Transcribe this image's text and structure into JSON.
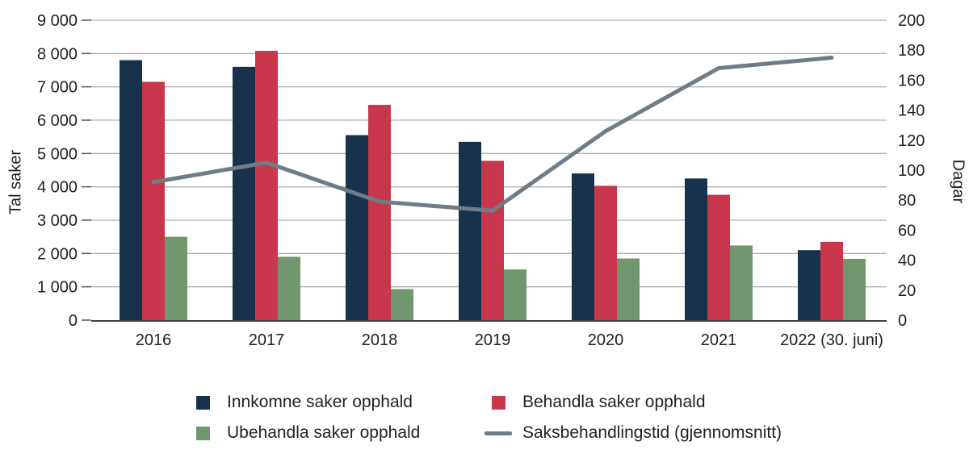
{
  "chart_data": {
    "type": "bar+line",
    "categories": [
      "2016",
      "2017",
      "2018",
      "2019",
      "2020",
      "2021",
      "2022 (30. juni)"
    ],
    "bar_series": [
      {
        "name": "Innkomne saker opphald",
        "color": "#17324d",
        "axis": "left",
        "values": [
          7800,
          7600,
          5550,
          5350,
          4400,
          4250,
          2100
        ]
      },
      {
        "name": "Behandla saker opphald",
        "color": "#c8374b",
        "axis": "left",
        "values": [
          7150,
          8080,
          6460,
          4780,
          4030,
          3760,
          2350
        ]
      },
      {
        "name": "Ubehandla saker opphald",
        "color": "#71976f",
        "axis": "left",
        "values": [
          2500,
          1900,
          930,
          1520,
          1850,
          2240,
          1840
        ]
      }
    ],
    "line_series": {
      "name": "Saksbehandlingstid (gjennomsnitt)",
      "color": "#6f7c86",
      "axis": "right",
      "values": [
        92,
        105,
        79,
        73,
        126,
        168,
        175
      ]
    },
    "left_axis": {
      "title": "Tal saker",
      "min": 0,
      "max": 9000,
      "step": 1000
    },
    "right_axis": {
      "title": "Dagar",
      "min": 0,
      "max": 200,
      "step": 20
    },
    "grid": true,
    "legend_position": "bottom",
    "colors": {
      "gridline": "#b3b3b3",
      "tick": "#595959",
      "axis_line": "#404040",
      "text": "#231f20"
    }
  }
}
